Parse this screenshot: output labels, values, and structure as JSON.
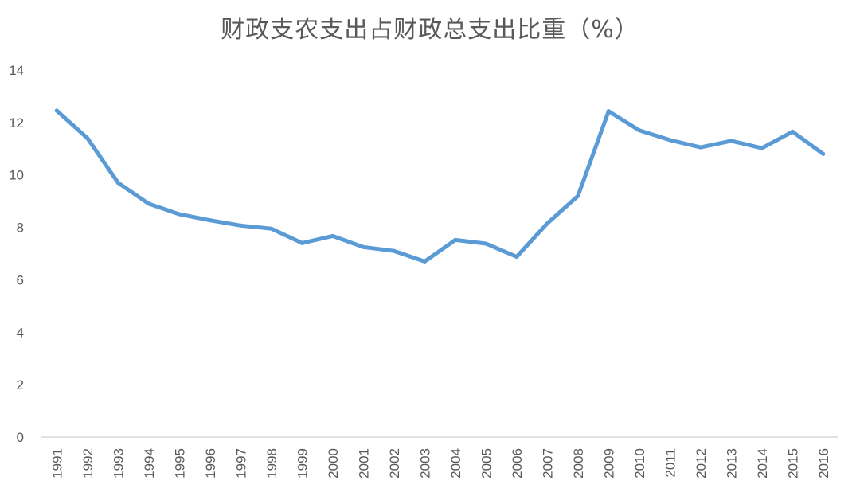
{
  "chart_data": {
    "type": "line",
    "title": "财政支农支出占财政总支出比重（%）",
    "xlabel": "",
    "ylabel": "",
    "x": [
      "1991",
      "1992",
      "1993",
      "1994",
      "1995",
      "1996",
      "1997",
      "1998",
      "1999",
      "2000",
      "2001",
      "2002",
      "2003",
      "2004",
      "2005",
      "2006",
      "2007",
      "2008",
      "2009",
      "2010",
      "2011",
      "2012",
      "2013",
      "2014",
      "2015",
      "2016"
    ],
    "series": [
      {
        "values": [
          12.45,
          11.4,
          9.7,
          8.9,
          8.5,
          8.27,
          8.07,
          7.95,
          7.4,
          7.67,
          7.25,
          7.1,
          6.7,
          7.52,
          7.38,
          6.88,
          8.15,
          9.2,
          12.43,
          11.7,
          11.33,
          11.05,
          11.3,
          11.02,
          11.65,
          10.8
        ],
        "color": "#5b9bd5"
      }
    ],
    "ylim": [
      0,
      14
    ],
    "yticks": [
      0,
      2,
      4,
      6,
      8,
      10,
      12,
      14
    ],
    "grid": false,
    "legend": "none"
  }
}
